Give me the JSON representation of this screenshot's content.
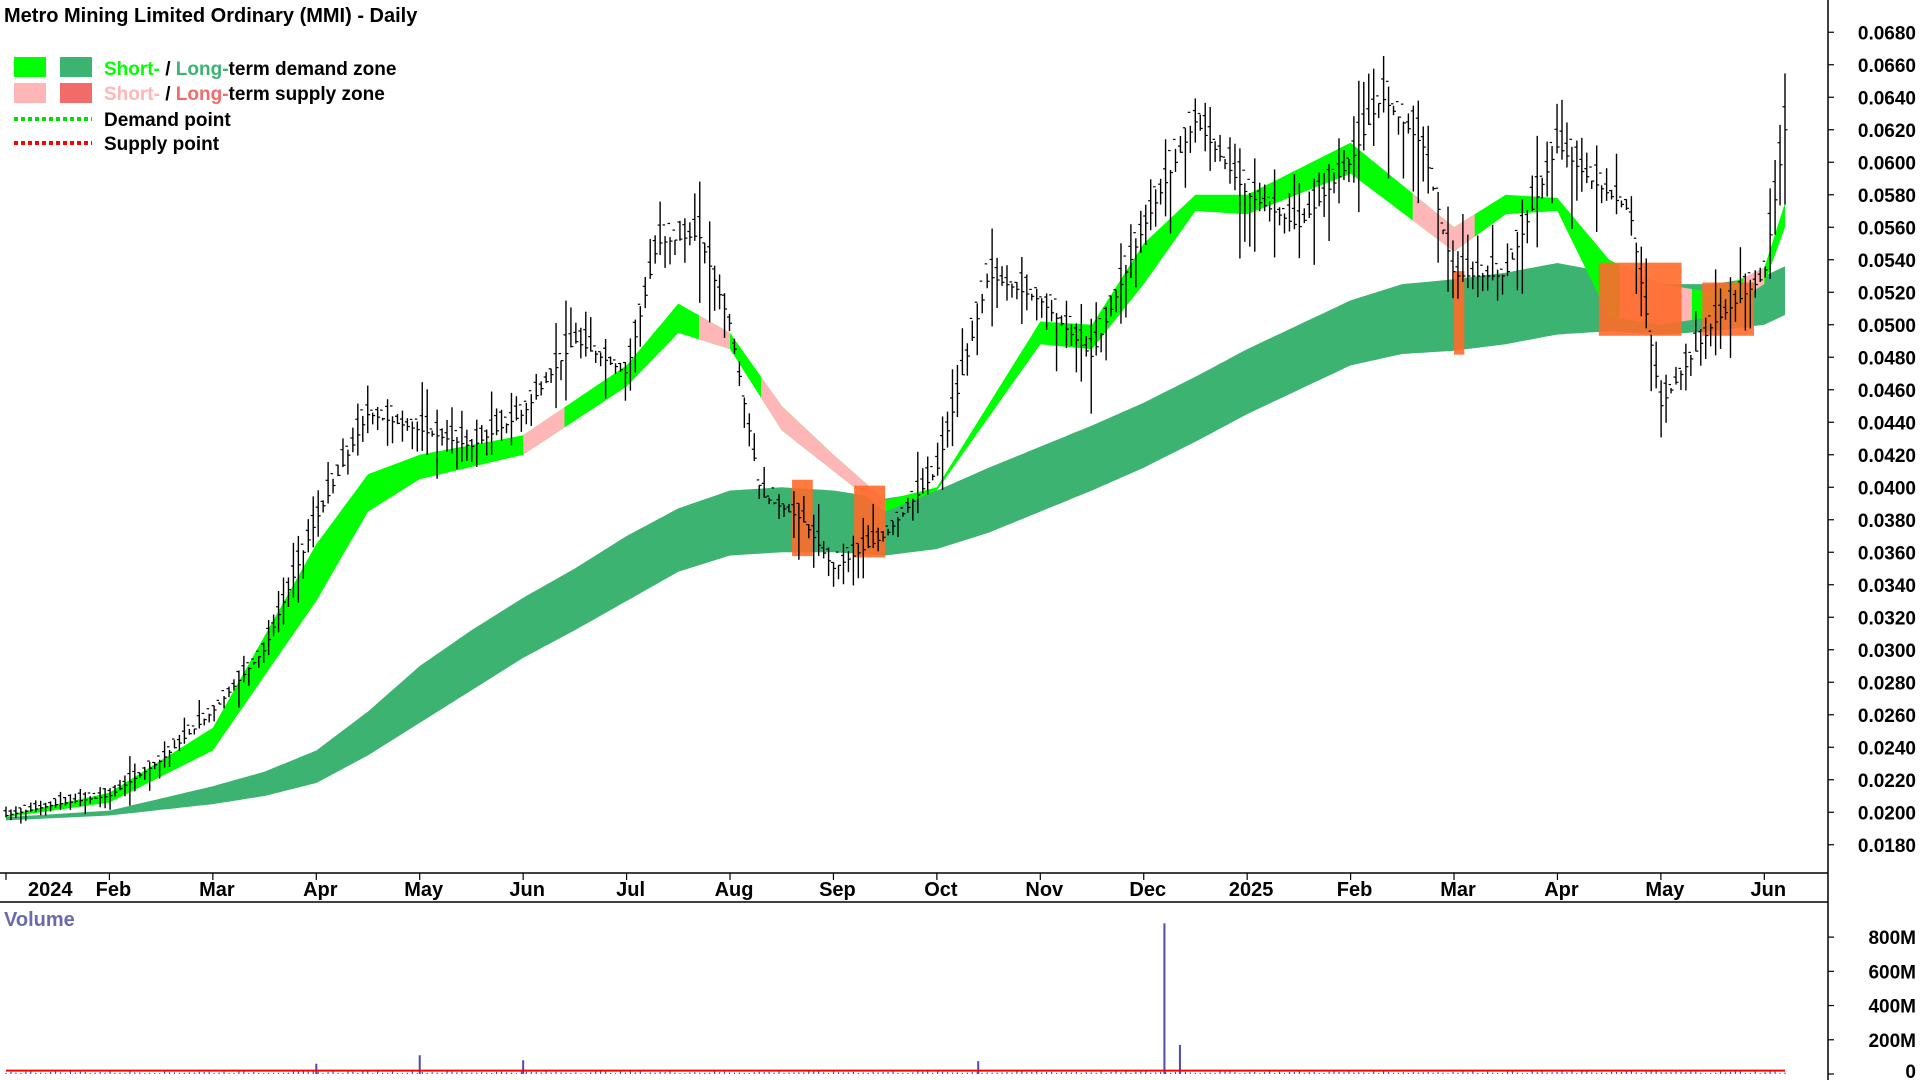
{
  "title": "Metro Mining Limited Ordinary (MMI) - Daily",
  "legend": {
    "demand_zone": {
      "short": "Short-",
      "sep": " / ",
      "long": "Long-",
      "rest": "term demand zone"
    },
    "supply_zone": {
      "short": "Short-",
      "sep": " / ",
      "long": "Long-",
      "rest": "term supply zone"
    },
    "demand_point": "Demand point",
    "supply_point": "Supply point"
  },
  "colors": {
    "short_demand": "#00ff00",
    "long_demand": "#3cb371",
    "short_supply": "#ffb6b6",
    "long_supply": "#ff6a2b",
    "demand_point": "#00e000",
    "supply_point": "#ff0000",
    "price_bar": "#000000",
    "volume_bar": "#4a4ab0",
    "volume_avg": "#ff0000",
    "volume_title": "#6a6aaa"
  },
  "chart_data": [
    {
      "type": "ohlc",
      "title": "Metro Mining Limited Ordinary (MMI) - Daily",
      "x_tick_labels": [
        "2024",
        "Feb",
        "Mar",
        "Apr",
        "May",
        "Jun",
        "Jul",
        "Aug",
        "Sep",
        "Oct",
        "Nov",
        "Dec",
        "2025",
        "Feb",
        "Mar",
        "Apr",
        "May",
        "Jun"
      ],
      "y_ticks": [
        "0.0180",
        "0.0200",
        "0.0220",
        "0.0240",
        "0.0260",
        "0.0280",
        "0.0300",
        "0.0320",
        "0.0340",
        "0.0360",
        "0.0380",
        "0.0400",
        "0.0420",
        "0.0440",
        "0.0460",
        "0.0480",
        "0.0500",
        "0.0520",
        "0.0540",
        "0.0560",
        "0.0580",
        "0.0600",
        "0.0620",
        "0.0640",
        "0.0660",
        "0.0680"
      ],
      "y_range": [
        0.017,
        0.069
      ],
      "price_path_months": [
        0,
        0.5,
        1,
        1.5,
        2,
        2.5,
        3,
        3.5,
        4,
        4.5,
        5,
        5.5,
        6,
        6.3,
        6.7,
        7,
        7.3,
        7.7,
        8,
        8.5,
        9,
        9.5,
        10,
        10.5,
        11,
        11.5,
        12,
        12.5,
        13,
        13.3,
        13.7,
        14,
        14.5,
        15,
        15.3,
        15.7,
        16,
        16.5,
        17,
        17.2
      ],
      "price_path_close": [
        0.0198,
        0.0205,
        0.021,
        0.0232,
        0.0262,
        0.03,
        0.038,
        0.0445,
        0.0435,
        0.0425,
        0.0445,
        0.049,
        0.047,
        0.055,
        0.0555,
        0.05,
        0.0395,
        0.038,
        0.035,
        0.037,
        0.041,
        0.053,
        0.0515,
        0.048,
        0.056,
        0.0625,
        0.058,
        0.056,
        0.06,
        0.064,
        0.061,
        0.053,
        0.053,
        0.061,
        0.059,
        0.057,
        0.045,
        0.05,
        0.053,
        0.062
      ],
      "short_term_zone": {
        "months": [
          0,
          1,
          2,
          3,
          3.5,
          4,
          5,
          6,
          6.5,
          7,
          7.5,
          8,
          8.5,
          9,
          10,
          10.5,
          11,
          11.5,
          12,
          13,
          14,
          14.5,
          15,
          15.5,
          16,
          16.5,
          17,
          17.2
        ],
        "upper": [
          0.0198,
          0.0212,
          0.0252,
          0.0365,
          0.0408,
          0.042,
          0.0432,
          0.0475,
          0.0513,
          0.0495,
          0.045,
          0.042,
          0.0392,
          0.04,
          0.0502,
          0.05,
          0.055,
          0.058,
          0.058,
          0.0612,
          0.056,
          0.058,
          0.0578,
          0.054,
          0.0525,
          0.052,
          0.0535,
          0.0575
        ],
        "lower": [
          0.0197,
          0.0206,
          0.0238,
          0.033,
          0.0385,
          0.0405,
          0.042,
          0.0462,
          0.0495,
          0.0485,
          0.0435,
          0.041,
          0.0385,
          0.0398,
          0.0488,
          0.0485,
          0.0525,
          0.057,
          0.0568,
          0.0593,
          0.0545,
          0.0568,
          0.057,
          0.0505,
          0.05,
          0.0505,
          0.0525,
          0.056
        ]
      },
      "long_term_zone": {
        "months": [
          0,
          1,
          2,
          2.5,
          3,
          3.5,
          4,
          4.5,
          5,
          5.5,
          6,
          6.5,
          7,
          7.5,
          8,
          8.5,
          9,
          9.5,
          10,
          10.5,
          11,
          11.5,
          12,
          12.5,
          13,
          13.5,
          14,
          14.5,
          15,
          15.5,
          16,
          16.5,
          17,
          17.2
        ],
        "upper": [
          0.0197,
          0.0201,
          0.0216,
          0.0225,
          0.0238,
          0.0262,
          0.029,
          0.0312,
          0.0332,
          0.035,
          0.037,
          0.0387,
          0.0398,
          0.04,
          0.0398,
          0.0393,
          0.0398,
          0.0412,
          0.0425,
          0.0438,
          0.0452,
          0.0468,
          0.0485,
          0.05,
          0.0515,
          0.0525,
          0.0528,
          0.0532,
          0.0538,
          0.0532,
          0.0525,
          0.0525,
          0.053,
          0.0536
        ],
        "lower": [
          0.0195,
          0.0198,
          0.0205,
          0.021,
          0.0218,
          0.0235,
          0.0255,
          0.0275,
          0.0295,
          0.0312,
          0.033,
          0.0348,
          0.0358,
          0.036,
          0.036,
          0.0358,
          0.0362,
          0.0372,
          0.0385,
          0.0398,
          0.0412,
          0.0428,
          0.0445,
          0.046,
          0.0475,
          0.0482,
          0.0484,
          0.0488,
          0.0494,
          0.0496,
          0.0494,
          0.0496,
          0.05,
          0.0506
        ]
      },
      "supply_segments_short": [
        [
          5.0,
          5.4
        ],
        [
          6.7,
          7.0
        ],
        [
          7.3,
          8.5
        ],
        [
          13.6,
          14.2
        ],
        [
          15.6,
          16.3
        ],
        [
          16.8,
          17.0
        ]
      ],
      "supply_segments_long": [
        [
          7.6,
          7.8
        ],
        [
          8.2,
          8.5
        ],
        [
          14.0,
          14.1
        ],
        [
          15.4,
          16.2
        ],
        [
          16.4,
          16.9
        ]
      ]
    },
    {
      "type": "bar",
      "title": "Volume",
      "y_ticks": [
        "800M",
        "600M",
        "400M",
        "200M",
        "0"
      ],
      "y_range": [
        0,
        900
      ],
      "spikes": [
        {
          "month": 3.0,
          "value": 60
        },
        {
          "month": 4.0,
          "value": 110
        },
        {
          "month": 5.0,
          "value": 80
        },
        {
          "month": 9.4,
          "value": 75
        },
        {
          "month": 11.2,
          "value": 880
        },
        {
          "month": 11.35,
          "value": 170
        }
      ],
      "baseline_value": 12,
      "average_line_value": 20
    }
  ]
}
